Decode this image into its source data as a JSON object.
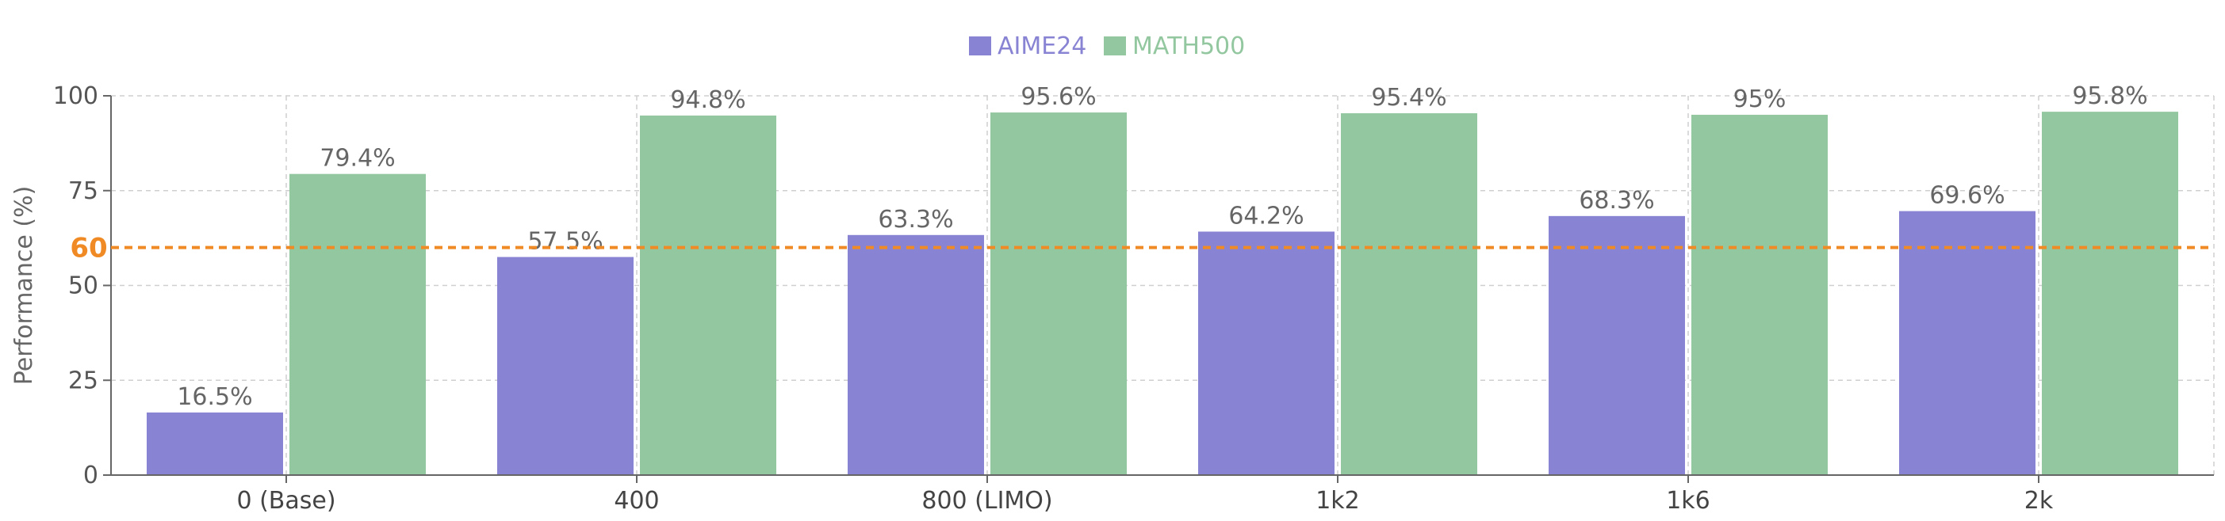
{
  "chart_data": {
    "type": "bar",
    "categories": [
      "0 (Base)",
      "400",
      "800 (LIMO)",
      "1k2",
      "1k6",
      "2k"
    ],
    "series": [
      {
        "name": "AIME24",
        "color": "#8884d3",
        "values": [
          16.5,
          57.5,
          63.3,
          64.2,
          68.3,
          69.6
        ],
        "labels": [
          "16.5%",
          "57.5%",
          "63.3%",
          "64.2%",
          "68.3%",
          "69.6%"
        ]
      },
      {
        "name": "MATH500",
        "color": "#93c79f",
        "values": [
          79.4,
          94.8,
          95.6,
          95.4,
          95,
          95.8
        ],
        "labels": [
          "79.4%",
          "94.8%",
          "95.6%",
          "95.4%",
          "95%",
          "95.8%"
        ]
      }
    ],
    "ylabel": "Performance (%)",
    "ylim": [
      0,
      100
    ],
    "yticks": [
      0,
      25,
      50,
      75,
      100
    ],
    "grid": true,
    "legend": "top-center",
    "reference_line": {
      "value": 60,
      "label": "60",
      "color": "#f08a24",
      "style": "dashed"
    }
  }
}
